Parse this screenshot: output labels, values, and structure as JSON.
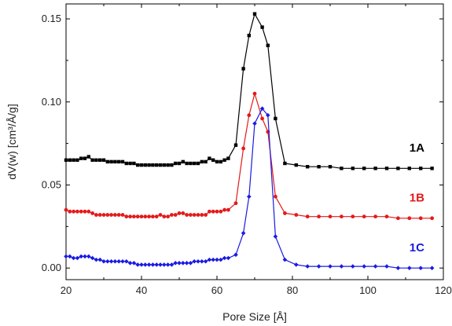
{
  "chart_data": {
    "type": "line",
    "title": "",
    "xlabel": "Pore Size [Å]",
    "ylabel": "dV(w) [cm³/Å/g]",
    "xlim": [
      20,
      120
    ],
    "ylim": [
      -0.007,
      0.159
    ],
    "xticks": [
      20,
      40,
      60,
      80,
      100,
      120
    ],
    "yticks": [
      0.0,
      0.05,
      0.1,
      0.15
    ],
    "ytick_labels": [
      "0.00",
      "0.05",
      "0.10",
      "0.15"
    ],
    "grid": false,
    "series": [
      {
        "name": "1A",
        "color": "#000000",
        "marker": "square",
        "x": [
          20,
          21,
          22,
          23,
          24,
          25,
          26,
          27,
          28,
          29,
          30,
          31,
          32,
          33,
          34,
          35,
          36,
          37,
          38,
          39,
          40,
          41,
          42,
          43,
          44,
          45,
          46,
          47,
          48,
          49,
          50,
          51,
          52,
          53,
          54,
          55,
          56,
          57,
          58,
          59,
          60,
          61,
          62,
          63,
          65,
          67,
          68.5,
          70,
          72,
          73.5,
          75.5,
          78,
          81,
          84,
          87,
          90,
          93,
          96,
          99,
          102,
          105,
          108,
          111,
          114,
          117
        ],
        "y": [
          0.065,
          0.065,
          0.065,
          0.065,
          0.066,
          0.066,
          0.067,
          0.065,
          0.065,
          0.065,
          0.065,
          0.064,
          0.064,
          0.064,
          0.064,
          0.064,
          0.063,
          0.063,
          0.063,
          0.062,
          0.062,
          0.062,
          0.062,
          0.062,
          0.062,
          0.062,
          0.062,
          0.062,
          0.062,
          0.063,
          0.063,
          0.064,
          0.063,
          0.063,
          0.063,
          0.063,
          0.064,
          0.064,
          0.066,
          0.065,
          0.064,
          0.064,
          0.065,
          0.066,
          0.074,
          0.12,
          0.14,
          0.153,
          0.145,
          0.134,
          0.09,
          0.063,
          0.062,
          0.061,
          0.061,
          0.061,
          0.06,
          0.06,
          0.06,
          0.06,
          0.06,
          0.06,
          0.06,
          0.06,
          0.06
        ]
      },
      {
        "name": "1B",
        "color": "#e31a1a",
        "marker": "circle",
        "x": [
          20,
          21,
          22,
          23,
          24,
          25,
          26,
          27,
          28,
          29,
          30,
          31,
          32,
          33,
          34,
          35,
          36,
          37,
          38,
          39,
          40,
          41,
          42,
          43,
          44,
          45,
          46,
          47,
          48,
          49,
          50,
          51,
          52,
          53,
          54,
          55,
          56,
          57,
          58,
          59,
          60,
          61,
          62,
          63,
          65,
          67,
          68.5,
          70,
          72,
          73.5,
          75.5,
          78,
          81,
          84,
          87,
          90,
          93,
          96,
          99,
          102,
          105,
          108,
          111,
          114,
          117
        ],
        "y": [
          0.035,
          0.034,
          0.034,
          0.034,
          0.034,
          0.034,
          0.034,
          0.033,
          0.032,
          0.032,
          0.032,
          0.032,
          0.032,
          0.032,
          0.032,
          0.032,
          0.031,
          0.031,
          0.031,
          0.031,
          0.031,
          0.031,
          0.031,
          0.031,
          0.031,
          0.032,
          0.031,
          0.031,
          0.032,
          0.032,
          0.033,
          0.033,
          0.032,
          0.032,
          0.032,
          0.032,
          0.032,
          0.032,
          0.034,
          0.034,
          0.034,
          0.034,
          0.035,
          0.035,
          0.039,
          0.072,
          0.092,
          0.105,
          0.09,
          0.082,
          0.043,
          0.033,
          0.032,
          0.031,
          0.031,
          0.031,
          0.031,
          0.031,
          0.031,
          0.031,
          0.031,
          0.03,
          0.03,
          0.03,
          0.03
        ]
      },
      {
        "name": "1C",
        "color": "#1a1ae3",
        "marker": "diamond",
        "x": [
          20,
          21,
          22,
          23,
          24,
          25,
          26,
          27,
          28,
          29,
          30,
          31,
          32,
          33,
          34,
          35,
          36,
          37,
          38,
          39,
          40,
          41,
          42,
          43,
          44,
          45,
          46,
          47,
          48,
          49,
          50,
          51,
          52,
          53,
          54,
          55,
          56,
          57,
          58,
          59,
          60,
          61,
          62,
          63,
          65,
          67,
          68.5,
          70,
          72,
          73.5,
          75.5,
          78,
          81,
          84,
          87,
          90,
          93,
          96,
          99,
          102,
          105,
          108,
          111,
          114,
          117
        ],
        "y": [
          0.007,
          0.007,
          0.006,
          0.006,
          0.007,
          0.007,
          0.007,
          0.006,
          0.005,
          0.005,
          0.004,
          0.004,
          0.004,
          0.004,
          0.004,
          0.004,
          0.004,
          0.003,
          0.003,
          0.002,
          0.002,
          0.002,
          0.002,
          0.002,
          0.002,
          0.002,
          0.002,
          0.002,
          0.002,
          0.003,
          0.003,
          0.003,
          0.003,
          0.003,
          0.004,
          0.004,
          0.004,
          0.004,
          0.005,
          0.005,
          0.005,
          0.005,
          0.006,
          0.006,
          0.008,
          0.021,
          0.043,
          0.087,
          0.096,
          0.092,
          0.019,
          0.005,
          0.002,
          0.001,
          0.001,
          0.001,
          0.001,
          0.001,
          0.001,
          0.001,
          0.001,
          0.0,
          0.0,
          0.0,
          0.0
        ],
        "point_labels": []
      }
    ],
    "annotations": [
      {
        "text": "1A",
        "series": "1A",
        "color": "#000000",
        "x": 113,
        "y": 0.07
      },
      {
        "text": "1B",
        "series": "1B",
        "color": "#e31a1a",
        "x": 113,
        "y": 0.04
      },
      {
        "text": "1C",
        "series": "1C",
        "color": "#1a1ae3",
        "x": 113,
        "y": 0.01
      }
    ]
  }
}
